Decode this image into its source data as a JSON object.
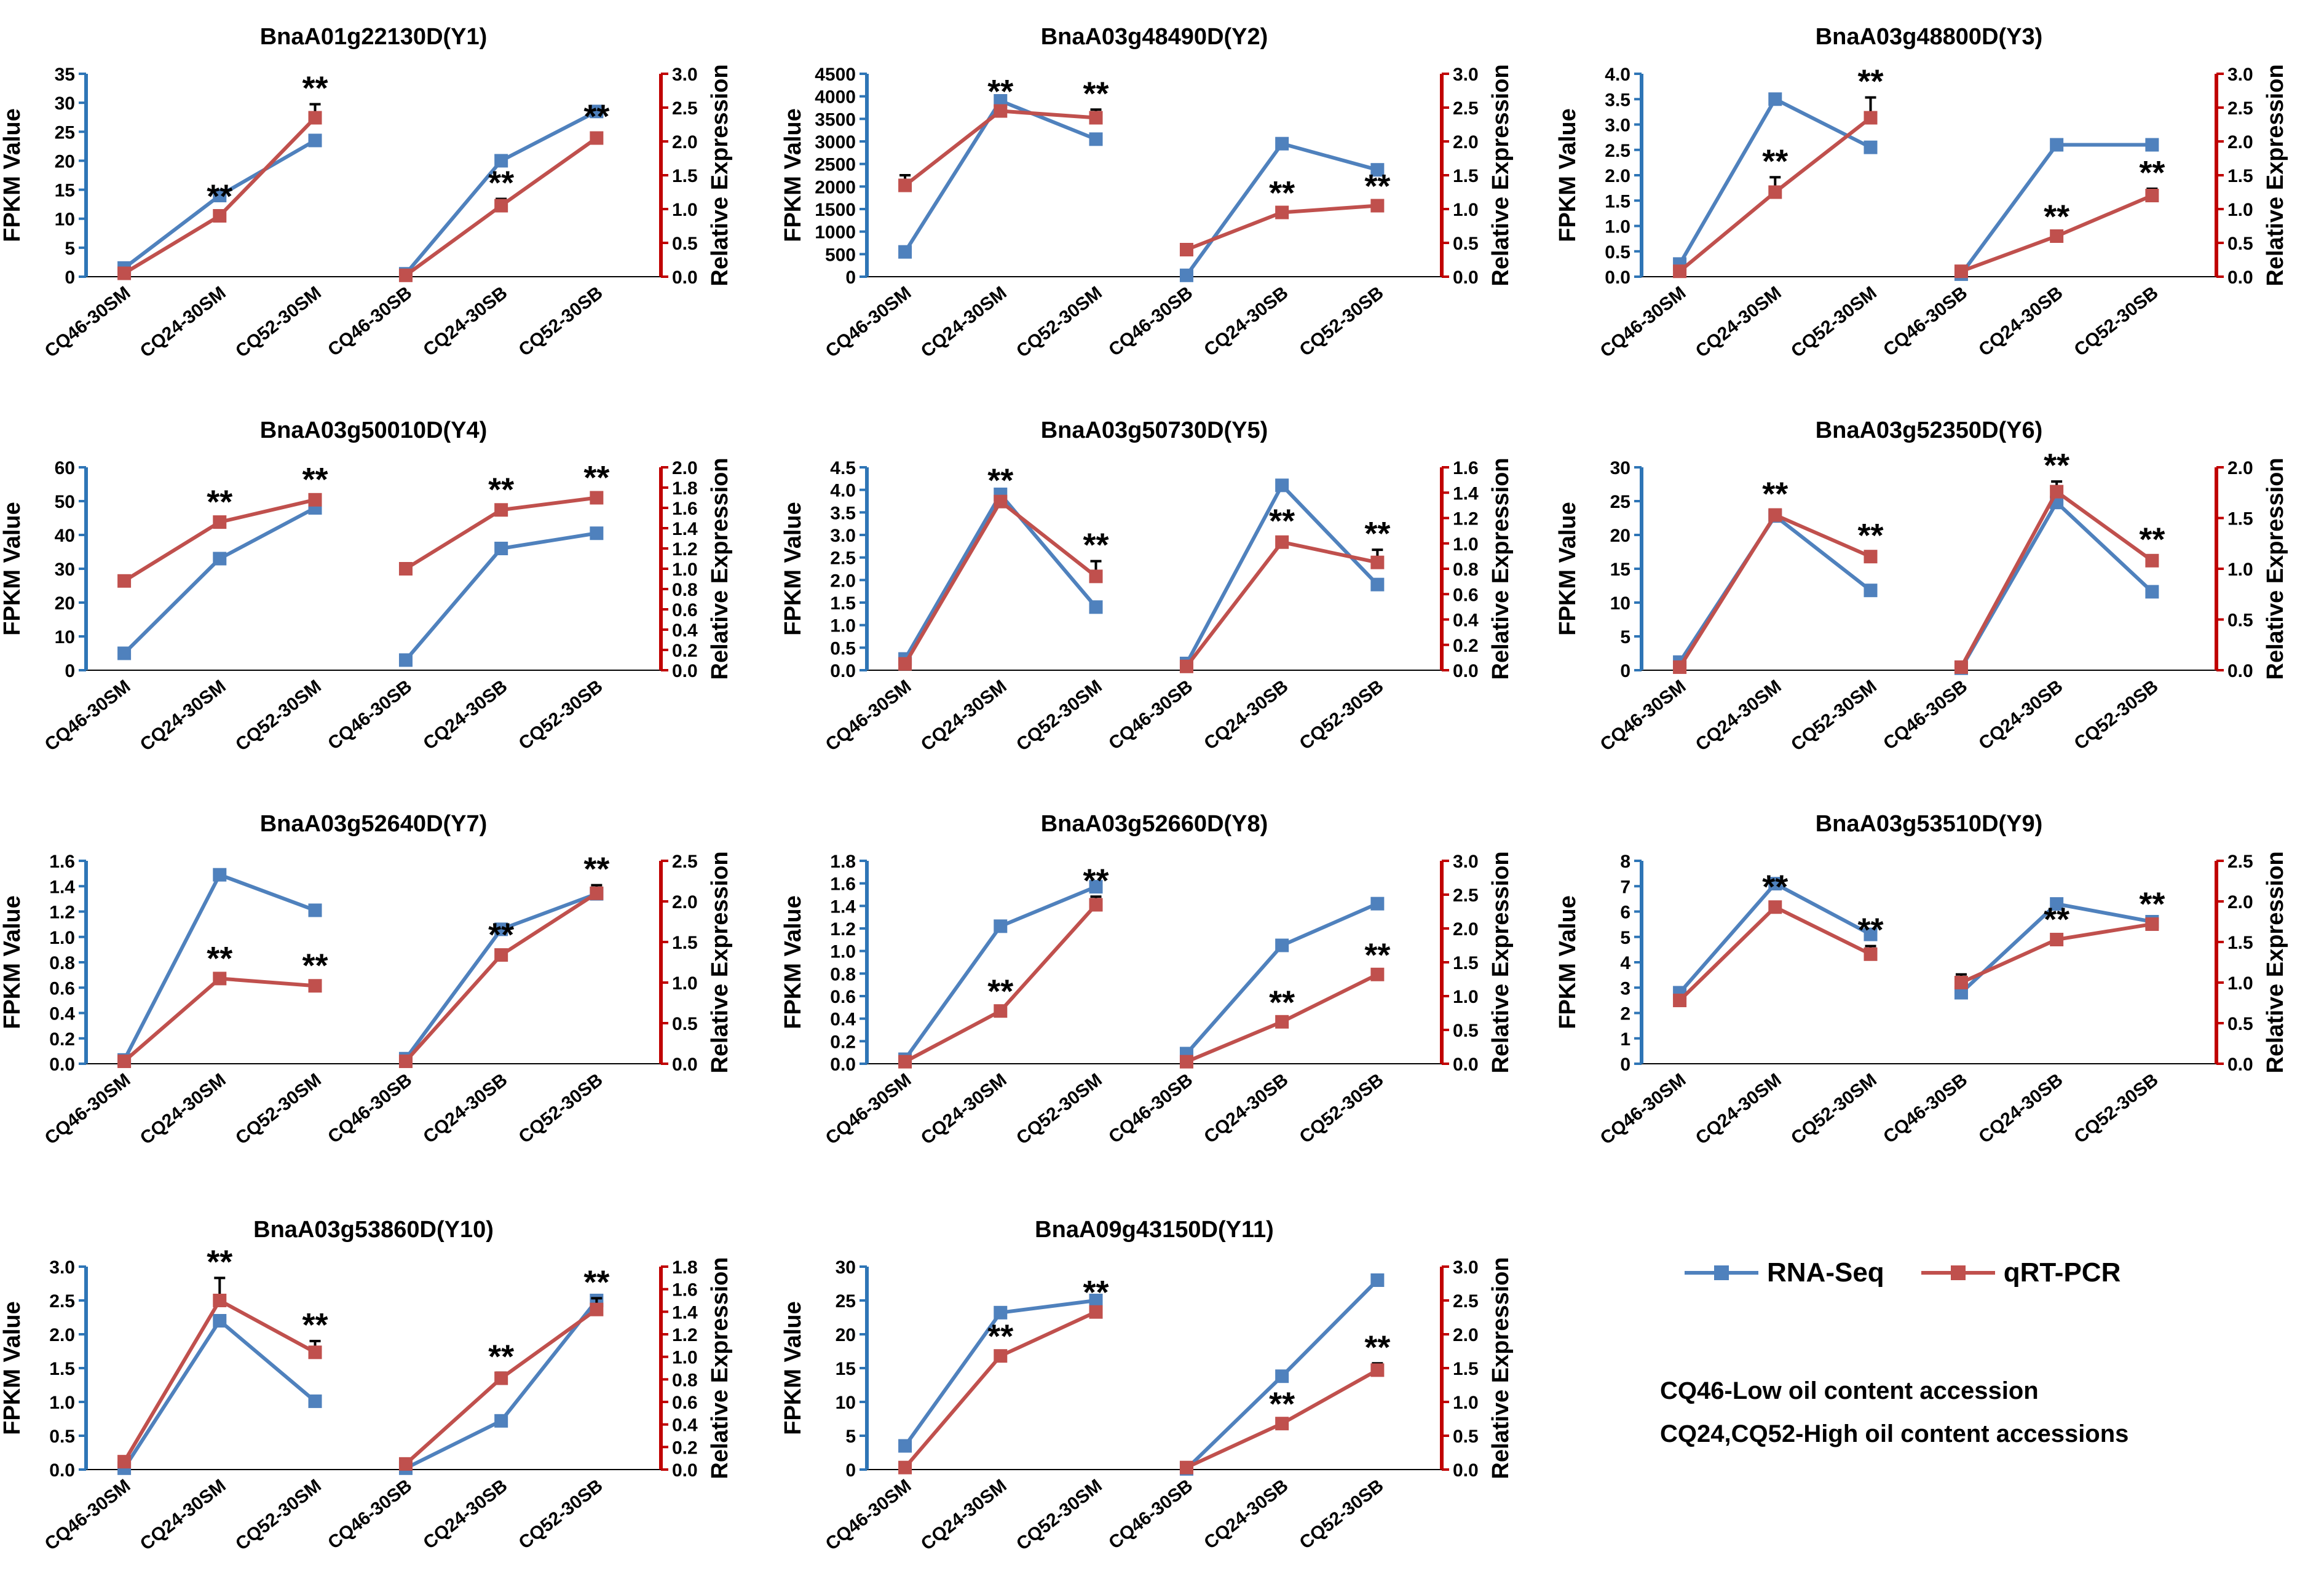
{
  "colors": {
    "rnaseq": "#4F81BD",
    "qrtpcr": "#C0504D",
    "left_axis": "#2E75B6",
    "right_axis": "#C00000",
    "text": "#000000"
  },
  "legend": {
    "rnaseq": "RNA-Seq",
    "qrtpcr": "qRT-PCR"
  },
  "notes": {
    "line1": "CQ46-Low oil content accession",
    "line2": "CQ24,CQ52-High oil content accessions"
  },
  "chart_data": [
    {
      "type": "line",
      "title": "BnaA01g22130D(Y1)",
      "ylabel": "FPKM Value",
      "y2label": "Relative Expression",
      "categories": [
        "CQ46-30SM",
        "CQ24-30SM",
        "CQ52-30SM",
        "CQ46-30SB",
        "CQ24-30SB",
        "CQ52-30SB"
      ],
      "ylim": [
        0,
        35
      ],
      "yticks": [
        0,
        5,
        10,
        15,
        20,
        25,
        30,
        35
      ],
      "yticklabels": [
        "0",
        "5",
        "10",
        "15",
        "20",
        "25",
        "30",
        "35"
      ],
      "y2lim": [
        0,
        3
      ],
      "y2ticks": [
        0,
        0.5,
        1,
        1.5,
        2,
        2.5,
        3
      ],
      "y2ticklabels": [
        "0.0",
        "0.5",
        "1.0",
        "1.5",
        "2.0",
        "2.5",
        "3.0"
      ],
      "series": [
        {
          "name": "RNA-Seq",
          "axis": "left",
          "values": [
            1.5,
            14,
            23.5,
            0.5,
            20,
            28.5
          ]
        },
        {
          "name": "qRT-PCR",
          "axis": "right",
          "values": [
            0.05,
            0.9,
            2.35,
            0.02,
            1.05,
            2.05
          ],
          "errors": [
            0,
            0.05,
            0.2,
            0,
            0.1,
            0.08
          ]
        }
      ],
      "significance": [
        "",
        "**",
        "**",
        "",
        "**",
        "**"
      ]
    },
    {
      "type": "line",
      "title": "BnaA03g48490D(Y2)",
      "ylabel": "FPKM Value",
      "y2label": "Relative Expression",
      "categories": [
        "CQ46-30SM",
        "CQ24-30SM",
        "CQ52-30SM",
        "CQ46-30SB",
        "CQ24-30SB",
        "CQ52-30SB"
      ],
      "ylim": [
        0,
        4500
      ],
      "yticks": [
        0,
        500,
        1000,
        1500,
        2000,
        2500,
        3000,
        3500,
        4000,
        4500
      ],
      "yticklabels": [
        "0",
        "500",
        "1000",
        "1500",
        "2000",
        "2500",
        "3000",
        "3500",
        "4000",
        "4500"
      ],
      "y2lim": [
        0,
        3
      ],
      "y2ticks": [
        0,
        0.5,
        1,
        1.5,
        2,
        2.5,
        3
      ],
      "y2ticklabels": [
        "0.0",
        "0.5",
        "1.0",
        "1.5",
        "2.0",
        "2.5",
        "3.0"
      ],
      "series": [
        {
          "name": "RNA-Seq",
          "axis": "left",
          "values": [
            550,
            3900,
            3050,
            30,
            2950,
            2370
          ]
        },
        {
          "name": "qRT-PCR",
          "axis": "right",
          "values": [
            1.35,
            2.45,
            2.35,
            0.4,
            0.95,
            1.05
          ],
          "errors": [
            0.15,
            0.05,
            0.12,
            0,
            0.05,
            0.05
          ]
        }
      ],
      "significance": [
        "",
        "**",
        "**",
        "",
        "**",
        "**"
      ]
    },
    {
      "type": "line",
      "title": "BnaA03g48800D(Y3)",
      "ylabel": "FPKM Value",
      "y2label": "Relative Expression",
      "categories": [
        "CQ46-30SM",
        "CQ24-30SM",
        "CQ52-30SM",
        "CQ46-30SB",
        "CQ24-30SB",
        "CQ52-30SB"
      ],
      "ylim": [
        0,
        4
      ],
      "yticks": [
        0,
        0.5,
        1,
        1.5,
        2,
        2.5,
        3,
        3.5,
        4
      ],
      "yticklabels": [
        "0.0",
        "0.5",
        "1.0",
        "1.5",
        "2.0",
        "2.5",
        "3.0",
        "3.5",
        "4.0"
      ],
      "y2lim": [
        0,
        3
      ],
      "y2ticks": [
        0,
        0.5,
        1,
        1.5,
        2,
        2.5,
        3
      ],
      "y2ticklabels": [
        "0.0",
        "0.5",
        "1.0",
        "1.5",
        "2.0",
        "2.5",
        "3.0"
      ],
      "series": [
        {
          "name": "RNA-Seq",
          "axis": "left",
          "values": [
            0.25,
            3.5,
            2.55,
            0.05,
            2.6,
            2.6
          ]
        },
        {
          "name": "qRT-PCR",
          "axis": "right",
          "values": [
            0.08,
            1.25,
            2.35,
            0.08,
            0.6,
            1.2
          ],
          "errors": [
            0,
            0.22,
            0.3,
            0,
            0.05,
            0.1
          ]
        }
      ],
      "significance": [
        "",
        "**",
        "**",
        "",
        "**",
        "**"
      ]
    },
    {
      "type": "line",
      "title": "BnaA03g50010D(Y4)",
      "ylabel": "FPKM Value",
      "y2label": "Relative Expression",
      "categories": [
        "CQ46-30SM",
        "CQ24-30SM",
        "CQ52-30SM",
        "CQ46-30SB",
        "CQ24-30SB",
        "CQ52-30SB"
      ],
      "ylim": [
        0,
        60
      ],
      "yticks": [
        0,
        10,
        20,
        30,
        40,
        50,
        60
      ],
      "yticklabels": [
        "0",
        "10",
        "20",
        "30",
        "40",
        "50",
        "60"
      ],
      "y2lim": [
        0,
        2
      ],
      "y2ticks": [
        0,
        0.2,
        0.4,
        0.6,
        0.8,
        1,
        1.2,
        1.4,
        1.6,
        1.8,
        2
      ],
      "y2ticklabels": [
        "0.0",
        "0.2",
        "0.4",
        "0.6",
        "0.8",
        "1.0",
        "1.2",
        "1.4",
        "1.6",
        "1.8",
        "2.0"
      ],
      "series": [
        {
          "name": "RNA-Seq",
          "axis": "left",
          "values": [
            5,
            33,
            48,
            3,
            36,
            40.5
          ]
        },
        {
          "name": "qRT-PCR",
          "axis": "right",
          "values": [
            0.88,
            1.46,
            1.68,
            1.0,
            1.58,
            1.7
          ],
          "errors": [
            0.04,
            0.04,
            0.04,
            0,
            0.04,
            0.04
          ]
        }
      ],
      "significance": [
        "",
        "**",
        "**",
        "",
        "**",
        "**"
      ]
    },
    {
      "type": "line",
      "title": "BnaA03g50730D(Y5)",
      "ylabel": "FPKM Value",
      "y2label": "Relative Expression",
      "categories": [
        "CQ46-30SM",
        "CQ24-30SM",
        "CQ52-30SM",
        "CQ46-30SB",
        "CQ24-30SB",
        "CQ52-30SB"
      ],
      "ylim": [
        0,
        4.5
      ],
      "yticks": [
        0,
        0.5,
        1,
        1.5,
        2,
        2.5,
        3,
        3.5,
        4,
        4.5
      ],
      "yticklabels": [
        "0.0",
        "0.5",
        "1.0",
        "1.5",
        "2.0",
        "2.5",
        "3.0",
        "3.5",
        "4.0",
        "4.5"
      ],
      "y2lim": [
        0,
        1.6
      ],
      "y2ticks": [
        0,
        0.2,
        0.4,
        0.6,
        0.8,
        1,
        1.2,
        1.4,
        1.6
      ],
      "y2ticklabels": [
        "0.0",
        "0.2",
        "0.4",
        "0.6",
        "0.8",
        "1.0",
        "1.2",
        "1.4",
        "1.6"
      ],
      "series": [
        {
          "name": "RNA-Seq",
          "axis": "left",
          "values": [
            0.25,
            3.9,
            1.4,
            0.15,
            4.1,
            1.9
          ]
        },
        {
          "name": "qRT-PCR",
          "axis": "right",
          "values": [
            0.05,
            1.33,
            0.74,
            0.03,
            1.01,
            0.85
          ],
          "errors": [
            0,
            0.04,
            0.12,
            0,
            0.04,
            0.1
          ]
        }
      ],
      "significance": [
        "",
        "**",
        "**",
        "",
        "**",
        "**"
      ]
    },
    {
      "type": "line",
      "title": "BnaA03g52350D(Y6)",
      "ylabel": "FPKM Value",
      "y2label": "Relative Expression",
      "categories": [
        "CQ46-30SM",
        "CQ24-30SM",
        "CQ52-30SM",
        "CQ46-30SB",
        "CQ24-30SB",
        "CQ52-30SB"
      ],
      "ylim": [
        0,
        30
      ],
      "yticks": [
        0,
        5,
        10,
        15,
        20,
        25,
        30
      ],
      "yticklabels": [
        "0",
        "5",
        "10",
        "15",
        "20",
        "25",
        "30"
      ],
      "y2lim": [
        0,
        2
      ],
      "y2ticks": [
        0,
        0.5,
        1,
        1.5,
        2
      ],
      "y2ticklabels": [
        "0.0",
        "0.5",
        "1.0",
        "1.5",
        "2.0"
      ],
      "series": [
        {
          "name": "RNA-Seq",
          "axis": "left",
          "values": [
            1.2,
            22.8,
            11.8,
            0.3,
            24.8,
            11.6
          ]
        },
        {
          "name": "qRT-PCR",
          "axis": "right",
          "values": [
            0.03,
            1.53,
            1.12,
            0.03,
            1.76,
            1.08
          ],
          "errors": [
            0,
            0.05,
            0.05,
            0,
            0.1,
            0.05
          ]
        }
      ],
      "significance": [
        "",
        "**",
        "**",
        "",
        "**",
        "**"
      ]
    },
    {
      "type": "line",
      "title": "BnaA03g52640D(Y7)",
      "ylabel": "FPKM Value",
      "y2label": "Relative Expression",
      "categories": [
        "CQ46-30SM",
        "CQ24-30SM",
        "CQ52-30SM",
        "CQ46-30SB",
        "CQ24-30SB",
        "CQ52-30SB"
      ],
      "ylim": [
        0,
        1.6
      ],
      "yticks": [
        0,
        0.2,
        0.4,
        0.6,
        0.8,
        1,
        1.2,
        1.4,
        1.6
      ],
      "yticklabels": [
        "0.0",
        "0.2",
        "0.4",
        "0.6",
        "0.8",
        "1.0",
        "1.2",
        "1.4",
        "1.6"
      ],
      "y2lim": [
        0,
        2.5
      ],
      "y2ticks": [
        0,
        0.5,
        1,
        1.5,
        2,
        2.5
      ],
      "y2ticklabels": [
        "0.0",
        "0.5",
        "1.0",
        "1.5",
        "2.0",
        "2.5"
      ],
      "series": [
        {
          "name": "RNA-Seq",
          "axis": "left",
          "values": [
            0.03,
            1.49,
            1.21,
            0.04,
            1.06,
            1.34
          ]
        },
        {
          "name": "qRT-PCR",
          "axis": "right",
          "values": [
            0.03,
            1.05,
            0.96,
            0.03,
            1.34,
            2.1
          ],
          "errors": [
            0,
            0.05,
            0.05,
            0,
            0.05,
            0.1
          ]
        }
      ],
      "significance": [
        "",
        "**",
        "**",
        "",
        "**",
        "**"
      ]
    },
    {
      "type": "line",
      "title": "BnaA03g52660D(Y8)",
      "ylabel": "FPKM Value",
      "y2label": "Relative Expression",
      "categories": [
        "CQ46-30SM",
        "CQ24-30SM",
        "CQ52-30SM",
        "CQ46-30SB",
        "CQ24-30SB",
        "CQ52-30SB"
      ],
      "ylim": [
        0,
        1.8
      ],
      "yticks": [
        0,
        0.2,
        0.4,
        0.6,
        0.8,
        1,
        1.2,
        1.4,
        1.6,
        1.8
      ],
      "yticklabels": [
        "0.0",
        "0.2",
        "0.4",
        "0.6",
        "0.8",
        "1.0",
        "1.2",
        "1.4",
        "1.6",
        "1.8"
      ],
      "y2lim": [
        0,
        3
      ],
      "y2ticks": [
        0,
        0.5,
        1,
        1.5,
        2,
        2.5,
        3
      ],
      "y2ticklabels": [
        "0.0",
        "0.5",
        "1.0",
        "1.5",
        "2.0",
        "2.5",
        "3.0"
      ],
      "series": [
        {
          "name": "RNA-Seq",
          "axis": "left",
          "values": [
            0.04,
            1.22,
            1.57,
            0.09,
            1.05,
            1.42
          ]
        },
        {
          "name": "qRT-PCR",
          "axis": "right",
          "values": [
            0.03,
            0.78,
            2.35,
            0.03,
            0.62,
            1.32
          ],
          "errors": [
            0,
            0.05,
            0.12,
            0,
            0.05,
            0.05
          ]
        }
      ],
      "significance": [
        "",
        "**",
        "**",
        "",
        "**",
        "**"
      ]
    },
    {
      "type": "line",
      "title": "BnaA03g53510D(Y9)",
      "ylabel": "FPKM Value",
      "y2label": "Relative Expression",
      "categories": [
        "CQ46-30SM",
        "CQ24-30SM",
        "CQ52-30SM",
        "CQ46-30SB",
        "CQ24-30SB",
        "CQ52-30SB"
      ],
      "ylim": [
        0,
        8
      ],
      "yticks": [
        0,
        1,
        2,
        3,
        4,
        5,
        6,
        7,
        8
      ],
      "yticklabels": [
        "0",
        "1",
        "2",
        "3",
        "4",
        "5",
        "6",
        "7",
        "8"
      ],
      "y2lim": [
        0,
        2.5
      ],
      "y2ticks": [
        0,
        0.5,
        1,
        1.5,
        2,
        2.5
      ],
      "y2ticklabels": [
        "0.0",
        "0.5",
        "1.0",
        "1.5",
        "2.0",
        "2.5"
      ],
      "series": [
        {
          "name": "RNA-Seq",
          "axis": "left",
          "values": [
            2.8,
            7.1,
            5.1,
            2.8,
            6.3,
            5.6
          ]
        },
        {
          "name": "qRT-PCR",
          "axis": "right",
          "values": [
            0.78,
            1.93,
            1.35,
            1.0,
            1.53,
            1.72
          ],
          "errors": [
            0,
            0.05,
            0.1,
            0.1,
            0.05,
            0.05
          ]
        }
      ],
      "significance": [
        "",
        "**",
        "**",
        "",
        "**",
        "**"
      ]
    },
    {
      "type": "line",
      "title": "BnaA03g53860D(Y10)",
      "ylabel": "FPKM Value",
      "y2label": "Relative Expression",
      "categories": [
        "CQ46-30SM",
        "CQ24-30SM",
        "CQ52-30SM",
        "CQ46-30SB",
        "CQ24-30SB",
        "CQ52-30SB"
      ],
      "ylim": [
        0,
        3
      ],
      "yticks": [
        0,
        0.5,
        1,
        1.5,
        2,
        2.5,
        3
      ],
      "yticklabels": [
        "0.0",
        "0.5",
        "1.0",
        "1.5",
        "2.0",
        "2.5",
        "3.0"
      ],
      "y2lim": [
        0,
        1.8
      ],
      "y2ticks": [
        0,
        0.2,
        0.4,
        0.6,
        0.8,
        1,
        1.2,
        1.4,
        1.6,
        1.8
      ],
      "y2ticklabels": [
        "0.0",
        "0.2",
        "0.4",
        "0.6",
        "0.8",
        "1.0",
        "1.2",
        "1.4",
        "1.6",
        "1.8"
      ],
      "series": [
        {
          "name": "RNA-Seq",
          "axis": "left",
          "values": [
            0.02,
            2.2,
            1.01,
            0.02,
            0.72,
            2.5
          ]
        },
        {
          "name": "qRT-PCR",
          "axis": "right",
          "values": [
            0.07,
            1.5,
            1.04,
            0.05,
            0.81,
            1.42
          ],
          "errors": [
            0,
            0.2,
            0.1,
            0,
            0.05,
            0.1
          ]
        }
      ],
      "significance": [
        "",
        "**",
        "**",
        "",
        "**",
        "**"
      ]
    },
    {
      "type": "line",
      "title": "BnaA09g43150D(Y11)",
      "ylabel": "FPKM Value",
      "y2label": "Relative Expression",
      "categories": [
        "CQ46-30SM",
        "CQ24-30SM",
        "CQ52-30SM",
        "CQ46-30SB",
        "CQ24-30SB",
        "CQ52-30SB"
      ],
      "ylim": [
        0,
        30
      ],
      "yticks": [
        0,
        5,
        10,
        15,
        20,
        25,
        30
      ],
      "yticklabels": [
        "0",
        "5",
        "10",
        "15",
        "20",
        "25",
        "30"
      ],
      "y2lim": [
        0,
        3
      ],
      "y2ticks": [
        0,
        0.5,
        1,
        1.5,
        2,
        2.5,
        3
      ],
      "y2ticklabels": [
        "0.0",
        "0.5",
        "1.0",
        "1.5",
        "2.0",
        "2.5",
        "3.0"
      ],
      "series": [
        {
          "name": "RNA-Seq",
          "axis": "left",
          "values": [
            3.5,
            23.2,
            25,
            0.1,
            13.8,
            28
          ]
        },
        {
          "name": "qRT-PCR",
          "axis": "right",
          "values": [
            0.03,
            1.68,
            2.33,
            0.03,
            0.68,
            1.47
          ],
          "errors": [
            0,
            0.05,
            0.05,
            0,
            0.05,
            0.1
          ]
        }
      ],
      "significance": [
        "",
        "**",
        "**",
        "",
        "**",
        "**"
      ]
    }
  ]
}
